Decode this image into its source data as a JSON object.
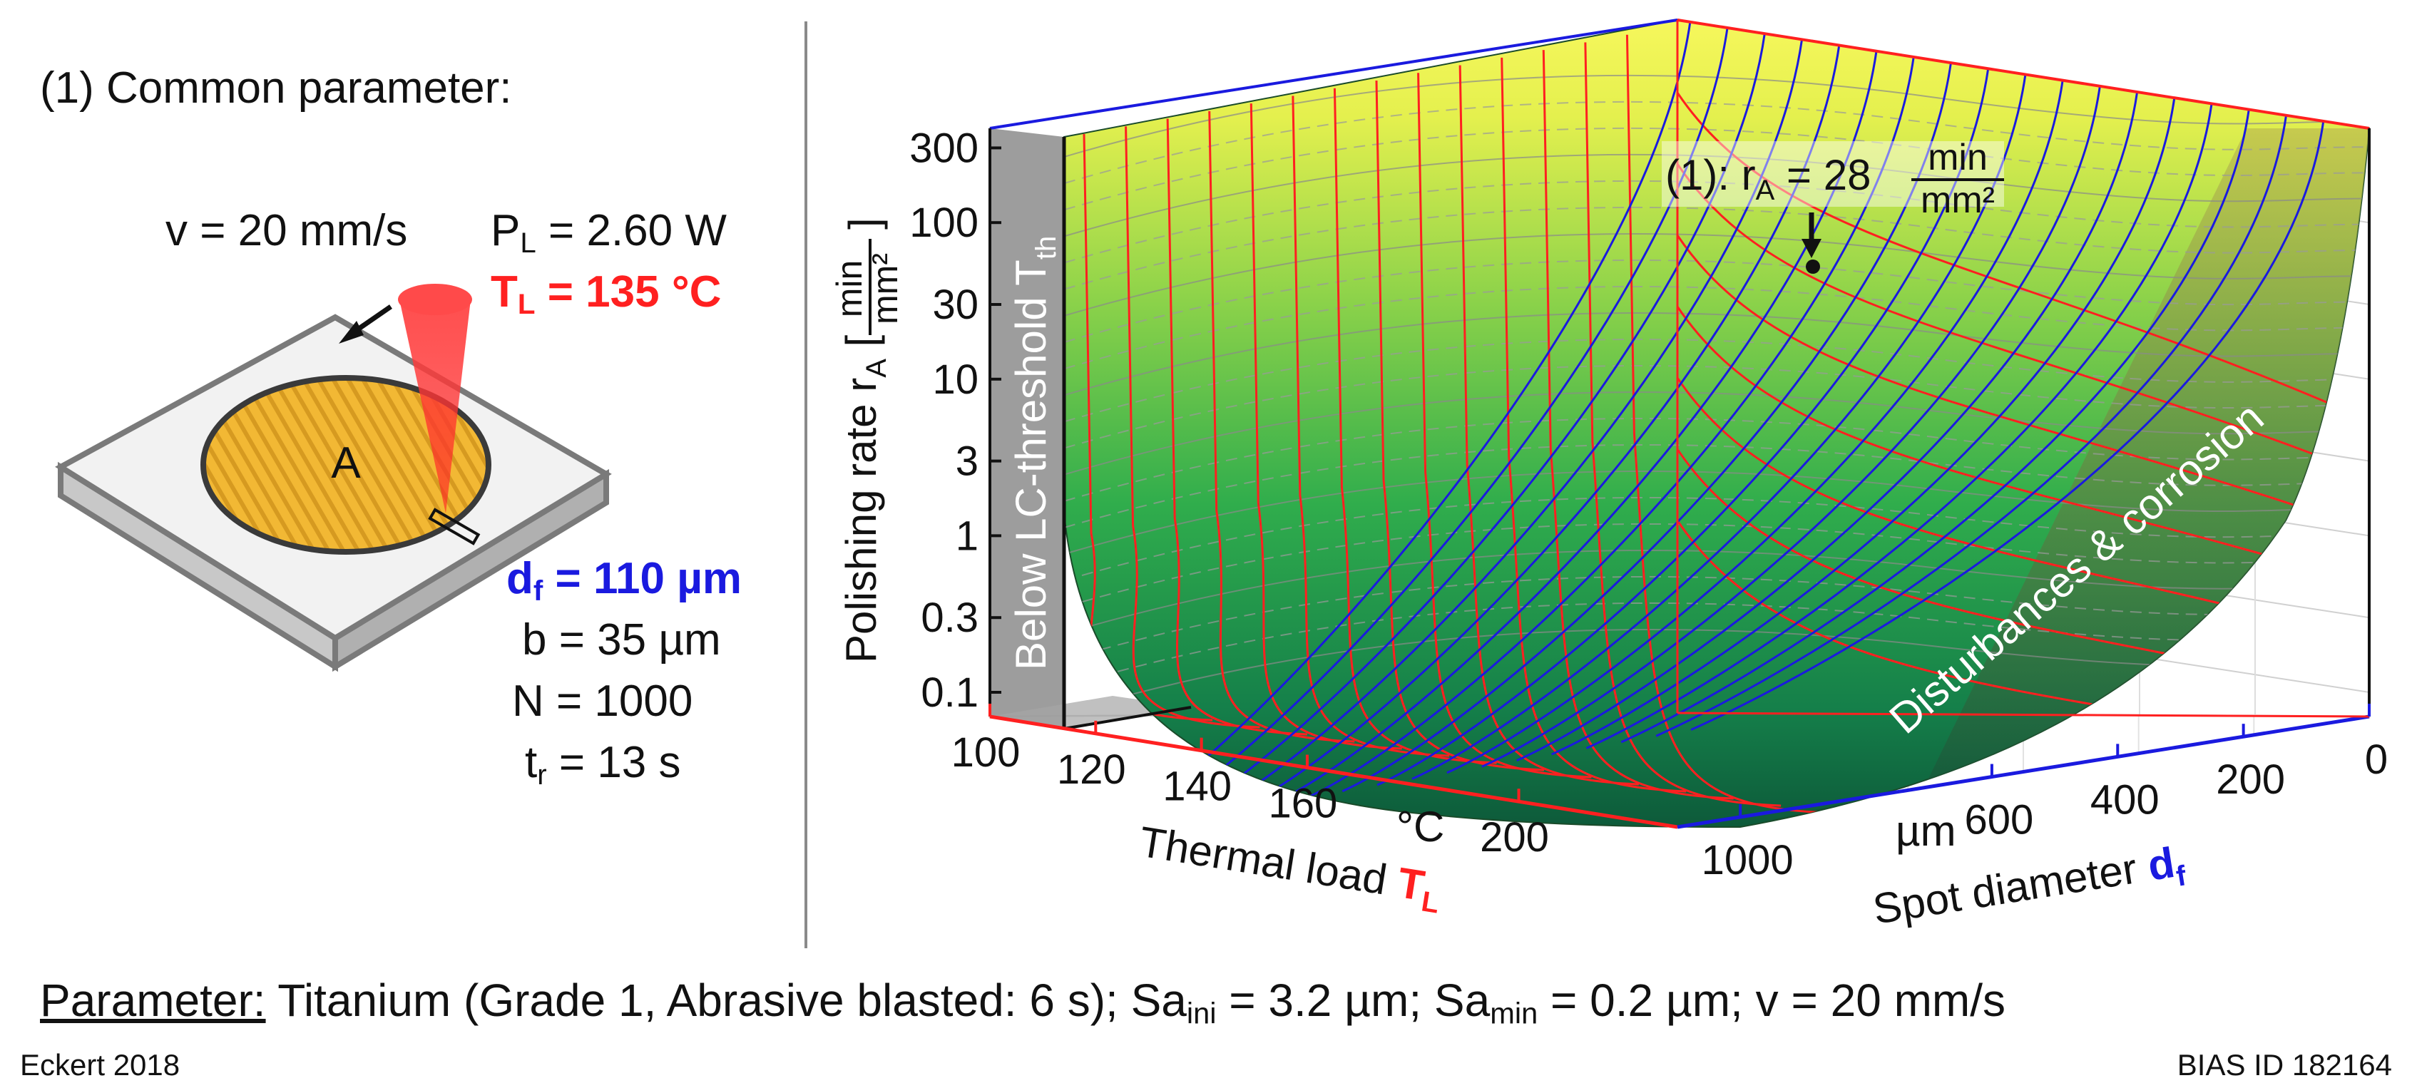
{
  "left_panel": {
    "title": "(1) Common parameter:",
    "velocity": "v = 20 mm/s",
    "power_symbol": "P",
    "power_sub": "L",
    "power_value": " = 2.60 W",
    "thermal_symbol": "T",
    "thermal_sub": "L",
    "thermal_value": " = 135 °C",
    "spot_symbol": "d",
    "spot_sub": "f",
    "spot_value": " = 110 µm",
    "b_value": "b = 35 µm",
    "n_value": "N = 1000",
    "time_symbol": "t",
    "time_sub": "r",
    "time_value": " = 13 s",
    "area_label": "A"
  },
  "bottom": {
    "parameter_label": "Parameter:",
    "parameter_text_1": " Titanium (Grade 1, Abrasive blasted: 6 s); Sa",
    "sub_ini": "ini",
    "parameter_text_2": " = 3.2 µm; Sa",
    "sub_min": "min",
    "parameter_text_3": " = 0.2 µm; v = 20 mm/s"
  },
  "footer": {
    "author": "Eckert 2018",
    "bias_id": "BIAS ID 182164"
  },
  "colors": {
    "red": "#ff2020",
    "blue": "#1a1adf",
    "surface_top": "#f4f75a",
    "surface_mid": "#3cb54a",
    "surface_low": "#0d5a3a",
    "region_gray": "#8c8c8c"
  },
  "chart_data": {
    "type": "surface3d",
    "z_axis": {
      "label_prefix": "Polishing rate r",
      "label_sub": "A",
      "unit_num": "min",
      "unit_den": "mm²",
      "scale": "log",
      "ticks": [
        "300",
        "100",
        "30",
        "10",
        "3",
        "1",
        "0.3",
        "0.1"
      ],
      "range": [
        0.07,
        400
      ]
    },
    "x_axis": {
      "label_prefix": "Thermal load ",
      "label_symbol": "T",
      "label_sub": "L",
      "unit": "°C",
      "ticks": [
        "100",
        "120",
        "140",
        "160",
        "200"
      ],
      "range": [
        100,
        230
      ]
    },
    "y_axis": {
      "label_prefix": "Spot diameter ",
      "label_symbol": "d",
      "label_sub": "f",
      "unit": "µm",
      "ticks": [
        "1000",
        "600",
        "400",
        "200",
        "0"
      ],
      "range": [
        0,
        1100
      ]
    },
    "regions": {
      "below_threshold": "Below LC-threshold T",
      "below_threshold_sub": "th",
      "disturbances": "Disturbances & corrosion"
    },
    "annotation": {
      "text_prefix": "(1): r",
      "text_sub": "A",
      "text_value": " = 28 ",
      "unit_num": "min",
      "unit_den": "mm²",
      "point": {
        "thermal_load": 135,
        "spot_diameter": 110,
        "rate": 28
      }
    }
  }
}
